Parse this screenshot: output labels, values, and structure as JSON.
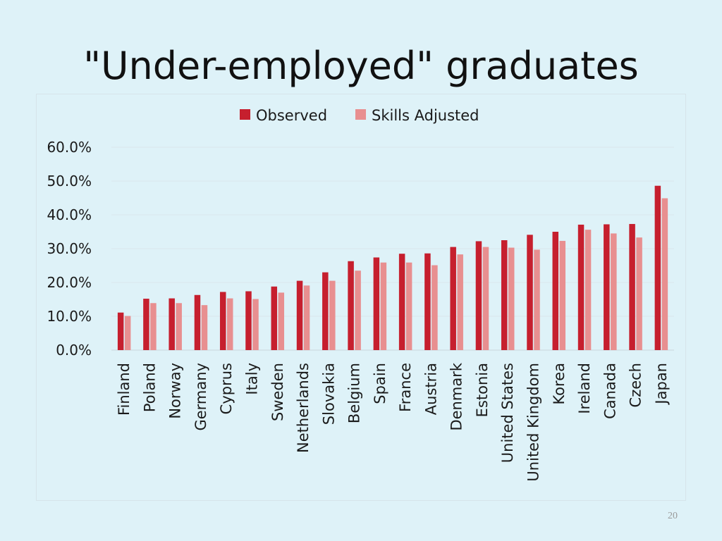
{
  "slide": {
    "title": "\"Under-employed\" graduates",
    "page_number": "20"
  },
  "colors": {
    "observed": "#c61f2e",
    "skills_adjusted": "#e88f90",
    "gridline": "#d9e6ec",
    "background": "#def2f8"
  },
  "chart_data": {
    "type": "bar",
    "title": "",
    "xlabel": "",
    "ylabel": "",
    "ylim": [
      0,
      0.6
    ],
    "yticks": [
      "0.0%",
      "10.0%",
      "20.0%",
      "30.0%",
      "40.0%",
      "50.0%",
      "60.0%"
    ],
    "grid": true,
    "legend_position": "top-center",
    "categories": [
      "Finland",
      "Poland",
      "Norway",
      "Germany",
      "Cyprus",
      "Italy",
      "Sweden",
      "Netherlands",
      "Slovakia",
      "Belgium",
      "Spain",
      "France",
      "Austria",
      "Denmark",
      "Estonia",
      "United States",
      "United Kingdom",
      "Korea",
      "Ireland",
      "Canada",
      "Czech",
      "Japan"
    ],
    "series": [
      {
        "name": "Observed",
        "values": [
          0.111,
          0.152,
          0.153,
          0.163,
          0.172,
          0.174,
          0.188,
          0.205,
          0.23,
          0.263,
          0.274,
          0.285,
          0.286,
          0.305,
          0.322,
          0.325,
          0.341,
          0.35,
          0.371,
          0.372,
          0.373,
          0.486
        ]
      },
      {
        "name": "Skills Adjusted",
        "values": [
          0.101,
          0.139,
          0.139,
          0.133,
          0.153,
          0.151,
          0.17,
          0.191,
          0.205,
          0.235,
          0.259,
          0.259,
          0.251,
          0.283,
          0.305,
          0.303,
          0.297,
          0.323,
          0.356,
          0.345,
          0.333,
          0.449
        ]
      }
    ]
  }
}
